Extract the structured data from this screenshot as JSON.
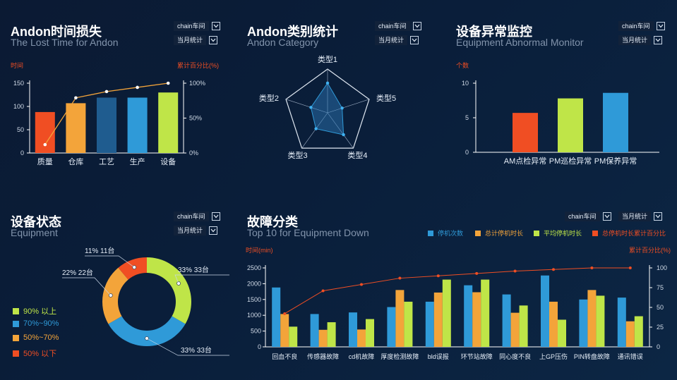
{
  "selects": {
    "workshop": "chain车间",
    "period": "当月统计"
  },
  "panels": {
    "lost_time": {
      "title": "Andon时间损失",
      "subtitle": "The Lost Time for Andon"
    },
    "category": {
      "title": "Andon类别统计",
      "subtitle": "Andon Category"
    },
    "abnormal": {
      "title": "设备异常监控",
      "subtitle": "Equipment Abnormal Monitor"
    },
    "status": {
      "title": "设备状态",
      "subtitle": "Equipment"
    },
    "fault": {
      "title": "故障分类",
      "subtitle": "Top 10 for Equipment Down"
    }
  },
  "colors": {
    "red": "#f04e23",
    "orange": "#f3a43a",
    "blue": "#2f9ad8",
    "green": "#bfe548",
    "navy": "#1f5c8f",
    "line": "#f3a43a",
    "axis": "#ffffff"
  },
  "chart_data": [
    {
      "id": "lost_time",
      "type": "bar",
      "categories": [
        "质量",
        "仓库",
        "工艺",
        "生产",
        "设备"
      ],
      "values": [
        88,
        107,
        119,
        119,
        130
      ],
      "bar_colors": [
        "#f04e23",
        "#f3a43a",
        "#1f5c8f",
        "#2f9ad8",
        "#bfe548"
      ],
      "ylabel": "时间",
      "y2label": "累计百分比(%)",
      "ylim": [
        0,
        150
      ],
      "yticks": [
        0,
        50,
        100,
        150
      ],
      "y2ticks": [
        "0%",
        "50%",
        "100%"
      ],
      "line_values": [
        12,
        79,
        88,
        94,
        100
      ]
    },
    {
      "id": "category",
      "type": "radar",
      "axes": [
        "类型1",
        "类型5",
        "类型4",
        "类型3",
        "类型2"
      ],
      "values": [
        0.68,
        0.35,
        0.62,
        0.45,
        0.4
      ]
    },
    {
      "id": "abnormal",
      "type": "bar",
      "categories": [
        "AM点检异常",
        "PM巡检异常",
        "PM保养异常"
      ],
      "values": [
        5.7,
        7.8,
        8.6
      ],
      "bar_colors": [
        "#f04e23",
        "#bfe548",
        "#2f9ad8"
      ],
      "ylabel": "个数",
      "ylim": [
        0,
        10
      ],
      "yticks": [
        0,
        5,
        10
      ]
    },
    {
      "id": "status",
      "type": "pie",
      "slices": [
        {
          "label": "33% 33台",
          "value": 33,
          "color": "#bfe548"
        },
        {
          "label": "33% 33台",
          "value": 33,
          "color": "#2f9ad8"
        },
        {
          "label": "22% 22台",
          "value": 22,
          "color": "#f3a43a"
        },
        {
          "label": "11% 11台",
          "value": 11,
          "color": "#f04e23"
        }
      ],
      "legend": [
        {
          "label": "90% 以上",
          "color": "#bfe548"
        },
        {
          "label": "70%~90%",
          "color": "#2f9ad8"
        },
        {
          "label": "50%~70%",
          "color": "#f3a43a"
        },
        {
          "label": "50% 以下",
          "color": "#f04e23"
        }
      ]
    },
    {
      "id": "fault",
      "type": "bar",
      "categories": [
        "回血不良",
        "传感器故障",
        "cd机故障",
        "厚度检测故障",
        "bld误报",
        "环节站故障",
        "同心度不良",
        "上GP压伤",
        "PIN转盘故障",
        "通讯错误"
      ],
      "series": [
        {
          "name": "停机次数",
          "color": "#2f9ad8",
          "values": [
            1880,
            1040,
            1090,
            1260,
            1430,
            1950,
            1660,
            2260,
            1500,
            1560
          ]
        },
        {
          "name": "总计停机时长",
          "color": "#f3a43a",
          "values": [
            1040,
            540,
            550,
            1800,
            1720,
            1730,
            1080,
            1430,
            1800,
            810
          ]
        },
        {
          "name": "平均停机时长",
          "color": "#bfe548",
          "values": [
            640,
            780,
            880,
            1430,
            2130,
            2130,
            1310,
            860,
            1620,
            970
          ]
        }
      ],
      "line_series": {
        "name": "总停机时长累计百分比",
        "color": "#f04e23",
        "values": [
          42,
          71,
          79,
          87,
          90,
          93,
          96,
          98,
          100,
          100
        ]
      },
      "ylabel": "时间(min)",
      "y2label": "累计百分比(%)",
      "ylim": [
        0,
        2500
      ],
      "yticks": [
        0,
        500,
        1000,
        1500,
        2000,
        2500
      ],
      "y2ticks": [
        0,
        25,
        50,
        75,
        100
      ]
    }
  ]
}
